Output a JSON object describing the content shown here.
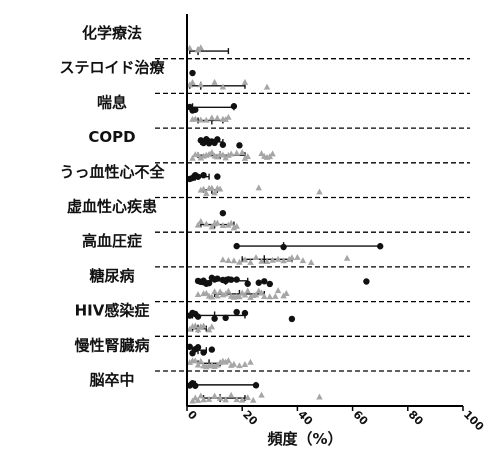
{
  "chart_data": {
    "type": "scatter",
    "xlabel": "頻度（%）",
    "xlim": [
      0,
      100
    ],
    "xticks": [
      0,
      20,
      40,
      60,
      80,
      100
    ],
    "categories": [
      {
        "name": "化学療法",
        "sub1": {
          "points": [],
          "whisker": null
        },
        "sub2": {
          "points": [
            1,
            4,
            4,
            5
          ],
          "whisker": [
            1,
            15
          ],
          "median": 4
        }
      },
      {
        "name": "ステロイド治療",
        "sub1": {
          "points": [
            2
          ],
          "whisker": null
        },
        "sub2": {
          "points": [
            1,
            2,
            5,
            10,
            13,
            21,
            29
          ],
          "whisker": [
            1,
            21
          ],
          "median": 5
        }
      },
      {
        "name": "喘息",
        "sub1": {
          "points": [
            1,
            2,
            3,
            17
          ],
          "whisker": [
            1,
            17
          ],
          "median": 2
        },
        "sub2": {
          "points": [
            2,
            3,
            5,
            7,
            9,
            11,
            13,
            14,
            15
          ],
          "whisker": [
            4,
            13
          ],
          "median": 9
        }
      },
      {
        "name": "COPD",
        "sub1": {
          "points": [
            5,
            6,
            7,
            8,
            8,
            9,
            10,
            11,
            13,
            19
          ],
          "whisker": [
            5,
            13
          ],
          "median": 8
        },
        "sub2": {
          "points": [
            2,
            3,
            4,
            5,
            6,
            7,
            8,
            9,
            10,
            11,
            12,
            13,
            14,
            15,
            16,
            18,
            20,
            21,
            22,
            27,
            28,
            29,
            30,
            31
          ],
          "whisker": [
            4,
            21
          ],
          "median": 12
        }
      },
      {
        "name": "うっ血性心不全",
        "sub1": {
          "points": [
            1,
            2,
            3,
            4,
            6,
            11
          ],
          "whisker": [
            2,
            8
          ],
          "median": 3
        },
        "sub2": {
          "points": [
            5,
            6,
            7,
            8,
            9,
            10,
            11,
            12,
            26,
            48
          ],
          "whisker": [
            6,
            11
          ],
          "median": 9
        }
      },
      {
        "name": "虚血性心疾患",
        "sub1": {
          "points": [
            13
          ],
          "whisker": null
        },
        "sub2": {
          "points": [
            4,
            5,
            7,
            9,
            10,
            11,
            13,
            15,
            16,
            17,
            18
          ],
          "whisker": [
            5,
            17
          ],
          "median": 10
        }
      },
      {
        "name": "高血圧症",
        "sub1": {
          "points": [
            18,
            35,
            70
          ],
          "whisker": [
            18,
            70
          ],
          "median": 35
        },
        "sub2": {
          "points": [
            13,
            15,
            17,
            19,
            21,
            23,
            25,
            27,
            29,
            31,
            33,
            35,
            37,
            38,
            40,
            42,
            45,
            58
          ],
          "whisker": [
            20,
            38
          ],
          "median": 28
        }
      },
      {
        "name": "糖尿病",
        "sub1": {
          "points": [
            4,
            5,
            6,
            6,
            7,
            8,
            9,
            10,
            11,
            13,
            14,
            15,
            16,
            18,
            22,
            26,
            28,
            30,
            65
          ],
          "whisker": [
            6,
            22
          ],
          "median": 14
        },
        "sub2": {
          "points": [
            4,
            6,
            7,
            8,
            9,
            10,
            11,
            12,
            13,
            14,
            15,
            16,
            17,
            18,
            19,
            20,
            21,
            22,
            23,
            24,
            25,
            26,
            27,
            28,
            30,
            32,
            33,
            35,
            36
          ],
          "whisker": [
            10,
            28
          ],
          "median": 19
        }
      },
      {
        "name": "HIV感染症",
        "sub1": {
          "points": [
            1,
            2,
            3,
            4,
            10,
            14,
            18,
            21,
            38
          ],
          "whisker": [
            2,
            21
          ],
          "median": 10
        },
        "sub2": {
          "points": [
            1,
            2,
            3,
            4,
            5,
            6,
            8,
            9
          ],
          "whisker": [
            2,
            7
          ],
          "median": 4
        }
      },
      {
        "name": "慢性腎臓病",
        "sub1": {
          "points": [
            1,
            2,
            3,
            4,
            6,
            9
          ],
          "whisker": [
            2,
            7
          ],
          "median": 4
        },
        "sub2": {
          "points": [
            1,
            2,
            3,
            4,
            5,
            6,
            7,
            8,
            9,
            10,
            11,
            12,
            13,
            14,
            15,
            16,
            17,
            19,
            21,
            23
          ],
          "whisker": [
            4,
            12
          ],
          "median": 8
        }
      },
      {
        "name": "脳卒中",
        "sub1": {
          "points": [
            1,
            2,
            3,
            25
          ],
          "whisker": [
            1,
            25
          ],
          "median": 3
        },
        "sub2": {
          "points": [
            2,
            3,
            4,
            5,
            6,
            8,
            10,
            12,
            14,
            16,
            18,
            20,
            22,
            24,
            27,
            48
          ],
          "whisker": [
            6,
            21
          ],
          "median": 12
        }
      }
    ],
    "colors": {
      "sub1": "#111111",
      "sub2": "#a6a6a6",
      "whisker": "#111111",
      "divider": "#000000"
    },
    "grid": false
  }
}
